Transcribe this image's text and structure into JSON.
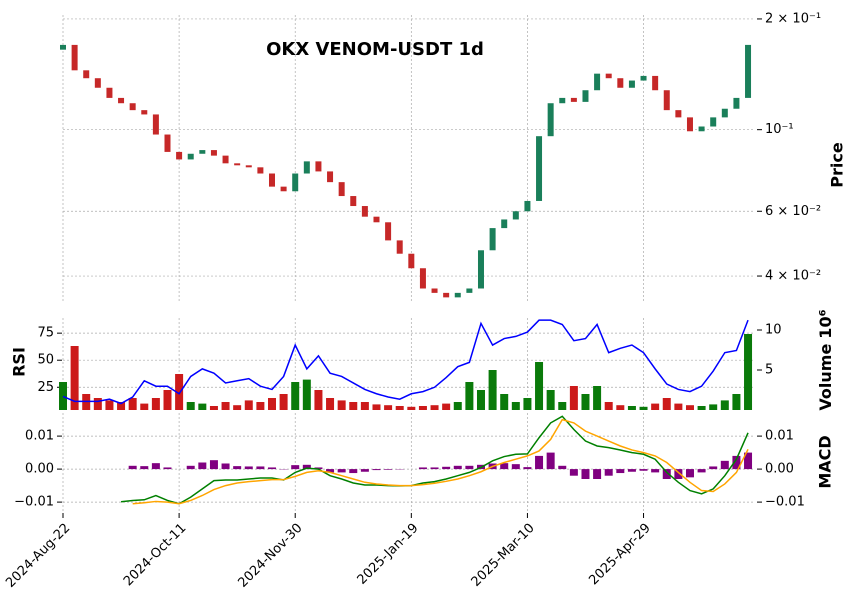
{
  "chart_data": [
    {
      "type": "candlestick",
      "title": "OKX VENOM-USDT 1d",
      "y_label": "Price",
      "log_scale": true,
      "grid": true,
      "up_color": "#1a7f5a",
      "down_color": "#c62828",
      "xlim": [
        0,
        298
      ],
      "xticks": [
        0,
        50,
        100,
        150,
        200,
        250
      ],
      "ylim": [
        0.034,
        0.205
      ],
      "yticks": [
        {
          "value": 0.2,
          "label": "2 × 10⁻¹"
        },
        {
          "value": 0.1,
          "label": "10⁻¹"
        },
        {
          "value": 0.06,
          "label": "6 × 10⁻²"
        },
        {
          "value": 0.04,
          "label": "4 × 10⁻²"
        }
      ],
      "x": [
        0,
        5,
        10,
        15,
        20,
        25,
        30,
        35,
        40,
        45,
        50,
        55,
        60,
        65,
        70,
        75,
        80,
        85,
        90,
        95,
        100,
        105,
        110,
        115,
        120,
        125,
        130,
        135,
        140,
        145,
        150,
        155,
        160,
        165,
        170,
        175,
        180,
        185,
        190,
        195,
        200,
        205,
        210,
        215,
        220,
        225,
        230,
        235,
        240,
        245,
        250,
        255,
        260,
        265,
        270,
        275,
        280,
        285,
        290,
        295
      ],
      "open": [
        0.165,
        0.17,
        0.145,
        0.138,
        0.13,
        0.122,
        0.118,
        0.113,
        0.11,
        0.097,
        0.087,
        0.083,
        0.086,
        0.088,
        0.085,
        0.081,
        0.08,
        0.079,
        0.076,
        0.07,
        0.068,
        0.076,
        0.082,
        0.077,
        0.072,
        0.066,
        0.062,
        0.058,
        0.056,
        0.05,
        0.046,
        0.042,
        0.037,
        0.036,
        0.035,
        0.036,
        0.037,
        0.047,
        0.054,
        0.057,
        0.06,
        0.064,
        0.096,
        0.118,
        0.122,
        0.119,
        0.128,
        0.142,
        0.138,
        0.13,
        0.136,
        0.14,
        0.128,
        0.113,
        0.108,
        0.099,
        0.102,
        0.108,
        0.114,
        0.122
      ],
      "close": [
        0.17,
        0.145,
        0.138,
        0.13,
        0.122,
        0.118,
        0.113,
        0.11,
        0.097,
        0.087,
        0.083,
        0.086,
        0.088,
        0.085,
        0.081,
        0.08,
        0.079,
        0.076,
        0.07,
        0.068,
        0.076,
        0.082,
        0.077,
        0.072,
        0.066,
        0.062,
        0.058,
        0.056,
        0.05,
        0.046,
        0.042,
        0.037,
        0.036,
        0.035,
        0.036,
        0.037,
        0.047,
        0.054,
        0.057,
        0.06,
        0.064,
        0.096,
        0.118,
        0.122,
        0.119,
        0.128,
        0.142,
        0.138,
        0.13,
        0.136,
        0.14,
        0.128,
        0.113,
        0.108,
        0.099,
        0.102,
        0.108,
        0.114,
        0.122,
        0.17
      ]
    },
    {
      "type": "volume_rsi",
      "y_label": "RSI",
      "y2_label": "Volume",
      "y2_offset": "10⁶",
      "grid": true,
      "up_color": "#0a7a0a",
      "down_color": "#cc1a1a",
      "line_color": "#0000ff",
      "xlim": [
        0,
        298
      ],
      "xticks": [
        0,
        50,
        100,
        150,
        200,
        250
      ],
      "ylim": [
        4,
        89
      ],
      "yticks": [
        25,
        50,
        75
      ],
      "y2lim": [
        0,
        11.5
      ],
      "y2ticks": [
        5,
        10
      ],
      "x": [
        0,
        5,
        10,
        15,
        20,
        25,
        30,
        35,
        40,
        45,
        50,
        55,
        60,
        65,
        70,
        75,
        80,
        85,
        90,
        95,
        100,
        105,
        110,
        115,
        120,
        125,
        130,
        135,
        140,
        145,
        150,
        155,
        160,
        165,
        170,
        175,
        180,
        185,
        190,
        195,
        200,
        205,
        210,
        215,
        220,
        225,
        230,
        235,
        240,
        245,
        250,
        255,
        260,
        265,
        270,
        275,
        280,
        285,
        290,
        295
      ],
      "rsi": [
        16.5,
        12,
        12,
        12,
        14,
        10,
        16,
        31,
        26,
        26,
        19,
        35,
        42,
        38,
        29,
        31,
        33,
        26,
        23,
        35,
        64,
        42,
        54,
        38,
        35,
        29,
        23,
        19,
        16,
        14,
        19,
        21,
        25,
        34,
        44,
        48,
        84,
        64,
        70,
        72,
        76,
        87,
        87,
        83,
        68,
        70,
        83,
        57,
        61,
        64,
        57,
        42,
        28,
        23,
        21,
        26,
        40,
        57,
        59,
        87
      ],
      "volume": [
        3.5,
        8,
        2,
        1.5,
        1.2,
        1,
        1.5,
        0.8,
        1.5,
        2.5,
        4.5,
        1,
        0.8,
        0.5,
        1,
        0.6,
        1.2,
        1,
        1.5,
        2,
        3.5,
        3.8,
        2.5,
        1.5,
        1.2,
        1,
        1,
        0.7,
        0.6,
        0.5,
        0.4,
        0.5,
        0.6,
        0.8,
        1,
        3.5,
        2.5,
        5,
        2,
        1,
        1.5,
        6,
        2.5,
        1,
        3,
        2,
        3,
        1,
        0.6,
        0.5,
        0.4,
        0.8,
        1.5,
        0.8,
        0.6,
        0.5,
        0.7,
        1.2,
        2,
        9.5
      ]
    },
    {
      "type": "macd",
      "y_label": "MACD",
      "grid": true,
      "macd_color": "#008000",
      "signal_color": "#ffa500",
      "hist_color": "#800080",
      "xlim": [
        0,
        298
      ],
      "xticks": [
        {
          "value": 0,
          "label": "2024-Aug-22"
        },
        {
          "value": 50,
          "label": "2024-Oct-11"
        },
        {
          "value": 100,
          "label": "2024-Nov-30"
        },
        {
          "value": 150,
          "label": "2025-Jan-19"
        },
        {
          "value": 200,
          "label": "2025-Mar-10"
        },
        {
          "value": 250,
          "label": "2025-Apr-29"
        }
      ],
      "ylim": [
        -0.013,
        0.017
      ],
      "yticks": [
        {
          "value": 0.01,
          "label": "0.01"
        },
        {
          "value": 0,
          "label": "0.00"
        },
        {
          "value": -0.01,
          "label": "−0.01"
        }
      ],
      "x": [
        0,
        5,
        10,
        15,
        20,
        25,
        30,
        35,
        40,
        45,
        50,
        55,
        60,
        65,
        70,
        75,
        80,
        85,
        90,
        95,
        100,
        105,
        110,
        115,
        120,
        125,
        130,
        135,
        140,
        145,
        150,
        155,
        160,
        165,
        170,
        175,
        180,
        185,
        190,
        195,
        200,
        205,
        210,
        215,
        220,
        225,
        230,
        235,
        240,
        245,
        250,
        255,
        260,
        265,
        270,
        275,
        280,
        285,
        290,
        295
      ],
      "macd": [
        null,
        null,
        null,
        null,
        null,
        -0.0099,
        -0.0095,
        -0.0093,
        -0.008,
        -0.0095,
        -0.0105,
        -0.0085,
        -0.006,
        -0.0035,
        -0.0033,
        -0.0033,
        -0.003,
        -0.0027,
        -0.0027,
        -0.0033,
        -0.001,
        0.0003,
        0.0,
        -0.002,
        -0.003,
        -0.0042,
        -0.0048,
        -0.0048,
        -0.005,
        -0.0051,
        -0.005,
        -0.0042,
        -0.0038,
        -0.003,
        -0.002,
        -0.001,
        0.0005,
        0.0025,
        0.0038,
        0.0045,
        0.0046,
        0.0095,
        0.014,
        0.016,
        0.012,
        0.0085,
        0.007,
        0.0065,
        0.0058,
        0.005,
        0.0045,
        0.003,
        -0.001,
        -0.004,
        -0.0065,
        -0.0075,
        -0.006,
        -0.002,
        0.003,
        0.011
      ],
      "signal": [
        null,
        null,
        null,
        null,
        null,
        null,
        -0.0105,
        -0.0102,
        -0.0098,
        -0.01,
        -0.0105,
        -0.0095,
        -0.008,
        -0.0062,
        -0.005,
        -0.0042,
        -0.0038,
        -0.0035,
        -0.0032,
        -0.0032,
        -0.0022,
        -0.001,
        -0.0005,
        -0.001,
        -0.002,
        -0.003,
        -0.004,
        -0.0045,
        -0.0048,
        -0.005,
        -0.005,
        -0.0047,
        -0.0043,
        -0.0037,
        -0.003,
        -0.002,
        -0.0008,
        0.0008,
        0.002,
        0.003,
        0.004,
        0.0055,
        0.009,
        0.015,
        0.014,
        0.0115,
        0.01,
        0.0085,
        0.007,
        0.0058,
        0.005,
        0.004,
        0.002,
        -0.001,
        -0.004,
        -0.0065,
        -0.0068,
        -0.0045,
        -0.001,
        0.006
      ],
      "histogram": [
        null,
        null,
        null,
        null,
        null,
        null,
        0.001,
        0.0009,
        0.0018,
        0.0005,
        0.0,
        0.001,
        0.002,
        0.0027,
        0.0017,
        0.0009,
        0.0008,
        0.0008,
        0.0005,
        -0.0001,
        0.0012,
        0.0013,
        0.0005,
        -0.001,
        -0.001,
        -0.0012,
        -0.0008,
        -0.0003,
        -0.0002,
        -0.0001,
        0.0,
        0.0005,
        0.0005,
        0.0007,
        0.001,
        0.001,
        0.0013,
        0.0017,
        0.0018,
        0.0015,
        0.0006,
        0.004,
        0.005,
        0.001,
        -0.002,
        -0.003,
        -0.003,
        -0.002,
        -0.0012,
        -0.0008,
        -0.0005,
        -0.001,
        -0.003,
        -0.003,
        -0.0025,
        -0.001,
        0.0008,
        0.0025,
        0.004,
        0.005
      ]
    }
  ]
}
